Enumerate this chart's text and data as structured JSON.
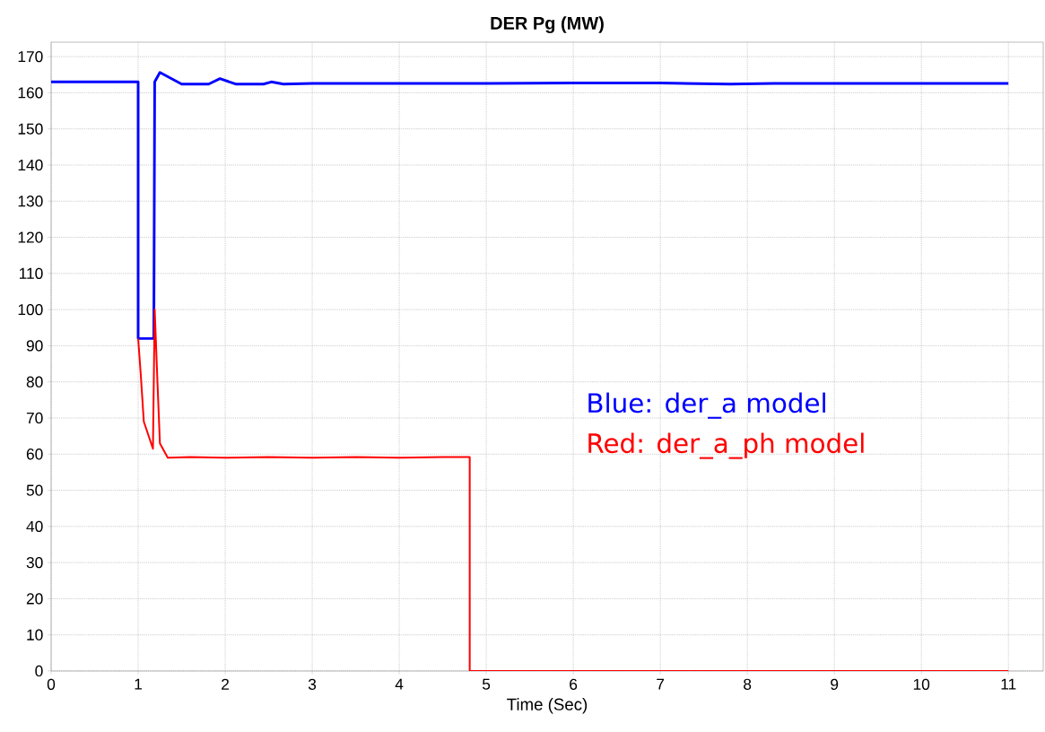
{
  "chart_data": {
    "type": "line",
    "title": "DER Pg (MW)",
    "xlabel": "Time (Sec)",
    "xlim": [
      0,
      11.4
    ],
    "ylim": [
      0,
      174
    ],
    "xticks": [
      0,
      1,
      2,
      3,
      4,
      5,
      6,
      7,
      8,
      9,
      10,
      11
    ],
    "yticks": [
      0,
      10,
      20,
      30,
      40,
      50,
      60,
      70,
      80,
      90,
      100,
      110,
      120,
      130,
      140,
      150,
      160,
      170
    ],
    "grid": true,
    "marker": "none",
    "line_style": "solid",
    "annotations": [
      "Blue: der_a model",
      "Red: der_a_ph model"
    ],
    "series": [
      {
        "color": "#0000ff",
        "x": [
          0,
          1.0,
          1.0,
          1.18,
          1.19,
          1.25,
          1.5,
          1.81,
          1.94,
          2.12,
          2.44,
          2.53,
          2.67,
          3.0,
          4.0,
          5.0,
          6.0,
          7.0,
          7.8,
          8.3,
          9.0,
          10.0,
          11.0
        ],
        "values": [
          163,
          163,
          92,
          92,
          163,
          165.6,
          162.4,
          162.4,
          163.9,
          162.4,
          162.4,
          163,
          162.4,
          162.6,
          162.6,
          162.6,
          162.7,
          162.7,
          162.4,
          162.6,
          162.6,
          162.6,
          162.6
        ]
      },
      {
        "color": "#ff0000",
        "x": [
          1.0,
          1.03,
          1.065,
          1.17,
          1.19,
          1.22,
          1.25,
          1.34,
          1.6,
          2.0,
          2.5,
          3.0,
          3.5,
          4.0,
          4.5,
          4.81,
          4.81,
          11.0
        ],
        "values": [
          92,
          82,
          69,
          61.5,
          100,
          81,
          63,
          59,
          59.2,
          59,
          59.2,
          59,
          59.2,
          59,
          59.2,
          59.2,
          0,
          0
        ]
      }
    ]
  }
}
